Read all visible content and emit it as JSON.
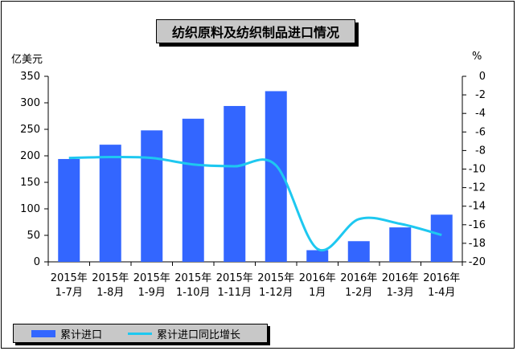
{
  "title": "纺织原料及纺织制品进口情况",
  "legend": {
    "bar_label": "累计进口",
    "line_label": "累计进口同比增长"
  },
  "colors": {
    "bar": "#3366ff",
    "line": "#1ec8f0"
  },
  "chart_data": {
    "type": "bar",
    "title": "纺织原料及纺织制品进口情况",
    "categories": [
      [
        "2015年",
        "1-7月"
      ],
      [
        "2015年",
        "1-8月"
      ],
      [
        "2015年",
        "1-9月"
      ],
      [
        "2015年",
        "1-10月"
      ],
      [
        "2015年",
        "1-11月"
      ],
      [
        "2015年",
        "1-12月"
      ],
      [
        "2016年",
        "1月"
      ],
      [
        "2016年",
        "1-2月"
      ],
      [
        "2016年",
        "1-3月"
      ],
      [
        "2016年",
        "1-4月"
      ]
    ],
    "y_left": {
      "unit_label": "亿美元",
      "ylim": [
        0,
        350
      ],
      "ticks": [
        "0",
        "50",
        "100",
        "150",
        "200",
        "250",
        "300",
        "350"
      ]
    },
    "y_right": {
      "unit_label": "%",
      "ylim": [
        -20,
        0
      ],
      "ticks": [
        "0",
        "-2",
        "-4",
        "-6",
        "-8",
        "-10",
        "-12",
        "-14",
        "-16",
        "-18",
        "-20"
      ]
    },
    "series": [
      {
        "name": "累计进口",
        "type": "bar",
        "axis": "left",
        "values": [
          194,
          221,
          248,
          270,
          294,
          322,
          22,
          39,
          65,
          89
        ]
      },
      {
        "name": "累计进口同比增长",
        "type": "line",
        "axis": "right",
        "values": [
          -8.8,
          -8.7,
          -8.8,
          -9.5,
          -9.7,
          -9.6,
          -18.6,
          -15.4,
          -15.9,
          -17.1
        ]
      }
    ],
    "grid": false,
    "legend_position": "bottom-left"
  }
}
